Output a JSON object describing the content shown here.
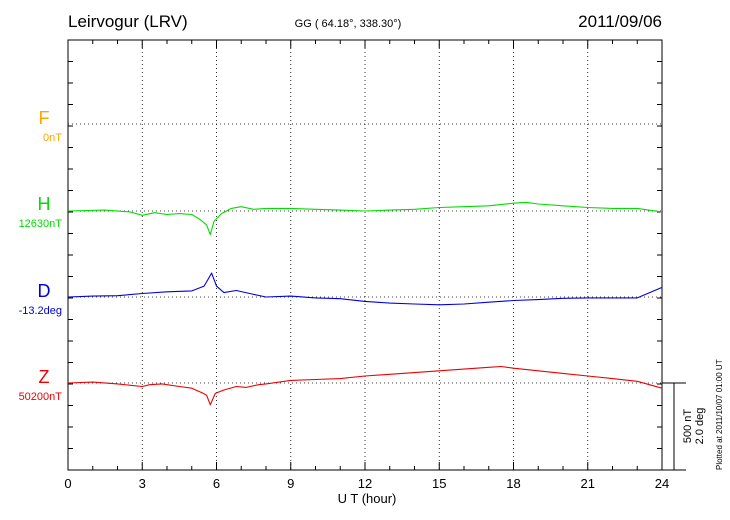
{
  "header": {
    "station": "Leirvogur (LRV)",
    "coords": "GG ( 64.18°, 338.30°)",
    "date": "2011/09/06"
  },
  "scale": {
    "nt": "500 nT",
    "deg": "2.0 deg"
  },
  "plotted": "Plotted at 2011/10/07 01:00 UT",
  "chart_data": {
    "type": "line",
    "title": "Leirvogur (LRV)",
    "xlabel": "U T (hour)",
    "ylabel": "",
    "xlim": [
      0,
      24
    ],
    "xticks": [
      "0",
      "3",
      "6",
      "9",
      "12",
      "15",
      "18",
      "21",
      "24"
    ],
    "grid": true,
    "scale_bar": {
      "nT": 500,
      "deg": 2.0
    },
    "series": [
      {
        "name": "F",
        "baseline_label": "0nT",
        "color": "#ffa500",
        "unit": "nT",
        "x": [],
        "y": []
      },
      {
        "name": "H",
        "baseline_label": "12630nT",
        "color": "#00dd00",
        "unit": "nT",
        "x": [
          0,
          1.5,
          2.5,
          3.0,
          3.5,
          4.0,
          4.5,
          5.0,
          5.3,
          5.6,
          5.75,
          5.9,
          6.2,
          6.6,
          7.0,
          7.5,
          8.0,
          9.0,
          10.0,
          11.0,
          12.0,
          13.0,
          14.0,
          15.0,
          16.0,
          17.0,
          18.0,
          18.5,
          19.0,
          20.0,
          21.0,
          22.0,
          23.0,
          24.0
        ],
        "y": [
          0,
          5,
          -5,
          -25,
          -10,
          -20,
          -15,
          -20,
          -45,
          -80,
          -135,
          -60,
          -15,
          15,
          25,
          10,
          15,
          15,
          10,
          5,
          0,
          5,
          10,
          20,
          25,
          30,
          45,
          50,
          40,
          30,
          20,
          15,
          15,
          -5
        ]
      },
      {
        "name": "D",
        "baseline_label": "-13.2deg",
        "color": "#0000dd",
        "unit": "deg",
        "x": [
          0,
          1.0,
          2.0,
          3.0,
          4.0,
          5.0,
          5.5,
          5.8,
          6.0,
          6.3,
          6.8,
          7.5,
          8.0,
          9.0,
          10.0,
          11.0,
          12.0,
          13.0,
          14.0,
          15.0,
          16.0,
          17.0,
          18.0,
          19.0,
          20.0,
          21.0,
          22.0,
          23.0,
          24.0
        ],
        "y": [
          0,
          0.02,
          0.03,
          0.08,
          0.12,
          0.14,
          0.25,
          0.55,
          0.25,
          0.1,
          0.15,
          0.06,
          0.0,
          0.02,
          -0.02,
          -0.04,
          -0.1,
          -0.14,
          -0.16,
          -0.18,
          -0.16,
          -0.12,
          -0.08,
          -0.06,
          -0.03,
          -0.02,
          -0.02,
          -0.02,
          0.22
        ]
      },
      {
        "name": "Z",
        "baseline_label": "50200nT",
        "color": "#ee0000",
        "unit": "nT",
        "x": [
          0,
          1.0,
          2.0,
          3.0,
          3.3,
          3.8,
          4.5,
          5.0,
          5.4,
          5.6,
          5.75,
          5.95,
          6.3,
          6.8,
          7.2,
          7.7,
          8.0,
          9.0,
          10.0,
          11.0,
          12.0,
          13.0,
          14.0,
          15.0,
          16.0,
          17.0,
          17.5,
          18.0,
          19.0,
          20.0,
          21.0,
          22.0,
          23.0,
          24.0
        ],
        "y": [
          0,
          5,
          -5,
          -20,
          -10,
          -5,
          -20,
          -30,
          -55,
          -70,
          -125,
          -60,
          -40,
          -20,
          -25,
          -10,
          -5,
          15,
          20,
          25,
          40,
          50,
          60,
          70,
          80,
          90,
          95,
          85,
          70,
          55,
          40,
          25,
          10,
          -30
        ]
      }
    ]
  }
}
